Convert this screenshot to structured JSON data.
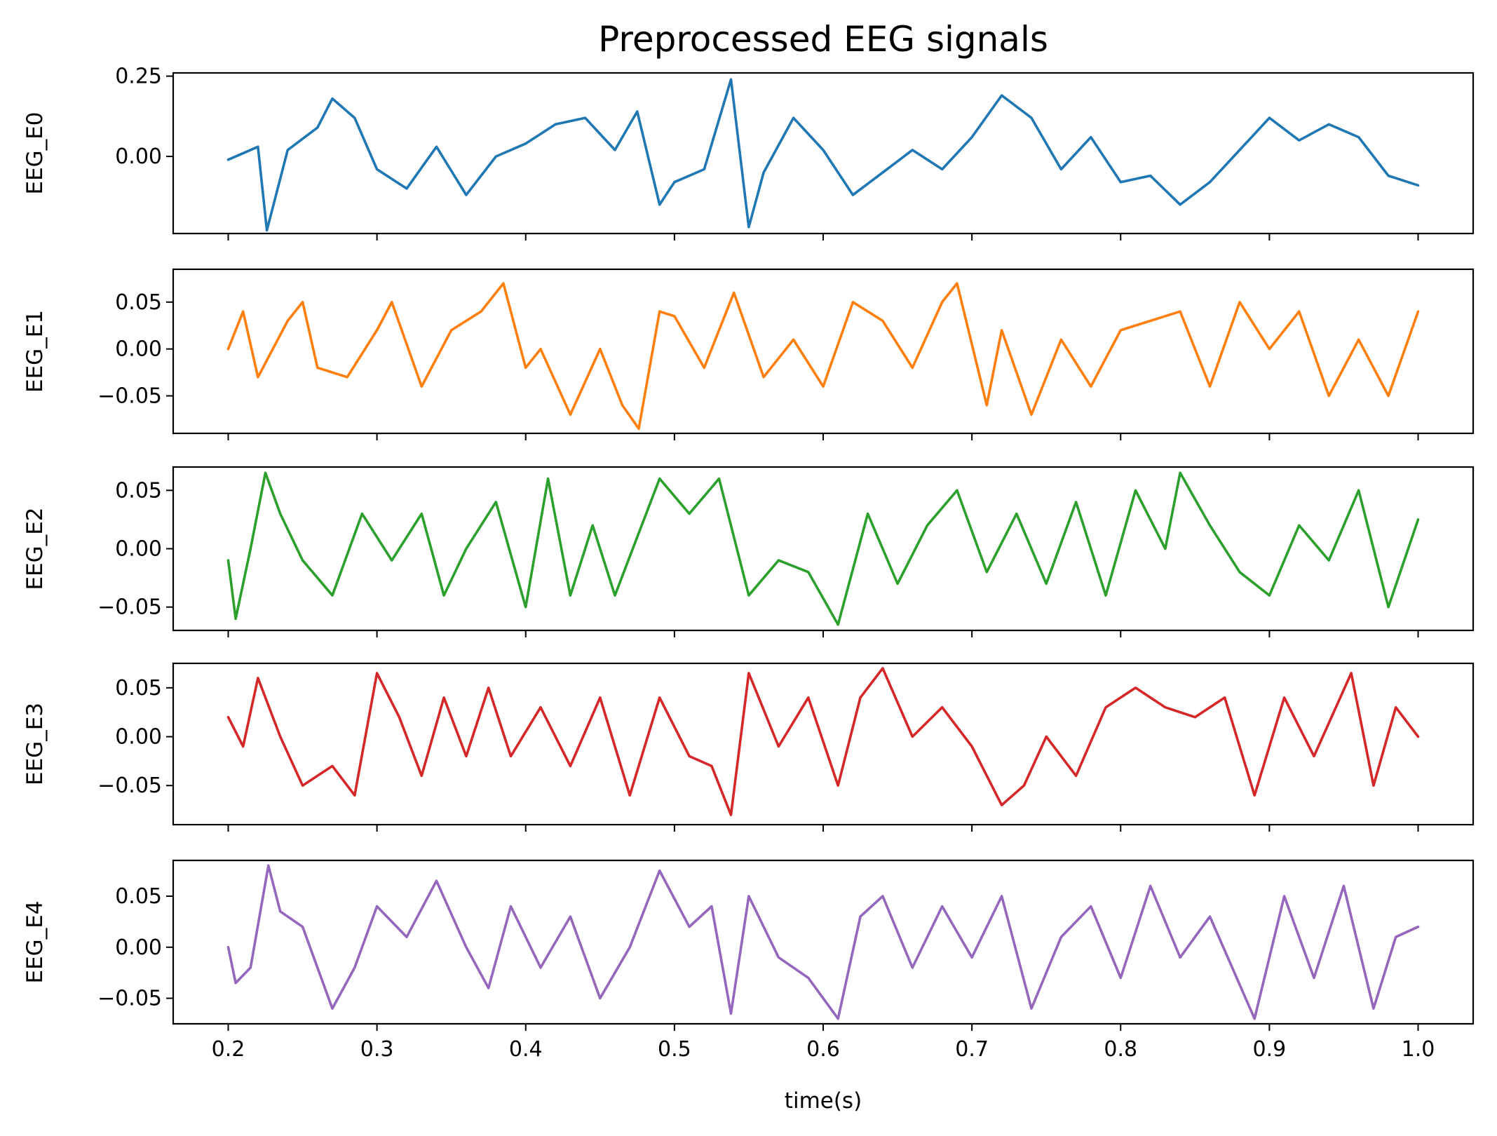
{
  "chart_data": {
    "type": "line",
    "title": "Preprocessed EEG signals",
    "xlabel": "time(s)",
    "xlim": [
      0.163,
      1.037
    ],
    "xticks": [
      0.2,
      0.3,
      0.4,
      0.5,
      0.6,
      0.7,
      0.8,
      0.9,
      1.0
    ],
    "xtick_labels": [
      "0.2",
      "0.3",
      "0.4",
      "0.5",
      "0.6",
      "0.7",
      "0.8",
      "0.9",
      "1.0"
    ],
    "grid": false,
    "legend": "none",
    "panels": [
      {
        "ylabel": "EEG_E0",
        "color": "#1f77b4",
        "ylim": [
          -0.24,
          0.26
        ],
        "yticks": [
          0.25,
          0.0
        ],
        "ytick_labels": [
          "0.25",
          "0.00"
        ],
        "x": [
          0.2,
          0.22,
          0.226,
          0.24,
          0.26,
          0.27,
          0.285,
          0.3,
          0.32,
          0.34,
          0.36,
          0.38,
          0.4,
          0.42,
          0.44,
          0.46,
          0.475,
          0.49,
          0.5,
          0.52,
          0.538,
          0.55,
          0.56,
          0.58,
          0.6,
          0.62,
          0.64,
          0.66,
          0.68,
          0.7,
          0.72,
          0.74,
          0.76,
          0.78,
          0.8,
          0.82,
          0.84,
          0.86,
          0.88,
          0.9,
          0.92,
          0.94,
          0.96,
          0.98,
          1.0
        ],
        "values": [
          -0.01,
          0.03,
          -0.23,
          0.02,
          0.09,
          0.18,
          0.12,
          -0.04,
          -0.1,
          0.03,
          -0.12,
          0.0,
          0.04,
          0.1,
          0.12,
          0.02,
          0.14,
          -0.15,
          -0.08,
          -0.04,
          0.24,
          -0.22,
          -0.05,
          0.12,
          0.02,
          -0.12,
          -0.05,
          0.02,
          -0.04,
          0.06,
          0.19,
          0.12,
          -0.04,
          0.06,
          -0.08,
          -0.06,
          -0.15,
          -0.08,
          0.02,
          0.12,
          0.05,
          0.1,
          0.06,
          -0.06,
          -0.09
        ]
      },
      {
        "ylabel": "EEG_E1",
        "color": "#ff7f0e",
        "ylim": [
          -0.09,
          0.085
        ],
        "yticks": [
          0.05,
          0.0,
          -0.05
        ],
        "ytick_labels": [
          "0.05",
          "0.00",
          "−0.05"
        ],
        "x": [
          0.2,
          0.21,
          0.22,
          0.24,
          0.25,
          0.26,
          0.28,
          0.3,
          0.31,
          0.33,
          0.35,
          0.37,
          0.385,
          0.4,
          0.41,
          0.43,
          0.45,
          0.465,
          0.476,
          0.49,
          0.5,
          0.52,
          0.54,
          0.56,
          0.58,
          0.6,
          0.62,
          0.64,
          0.66,
          0.68,
          0.69,
          0.71,
          0.72,
          0.74,
          0.76,
          0.78,
          0.8,
          0.82,
          0.84,
          0.86,
          0.88,
          0.9,
          0.92,
          0.94,
          0.96,
          0.98,
          1.0
        ],
        "values": [
          0.0,
          0.04,
          -0.03,
          0.03,
          0.05,
          -0.02,
          -0.03,
          0.02,
          0.05,
          -0.04,
          0.02,
          0.04,
          0.07,
          -0.02,
          0.0,
          -0.07,
          0.0,
          -0.06,
          -0.085,
          0.04,
          0.035,
          -0.02,
          0.06,
          -0.03,
          0.01,
          -0.04,
          0.05,
          0.03,
          -0.02,
          0.05,
          0.07,
          -0.06,
          0.02,
          -0.07,
          0.01,
          -0.04,
          0.02,
          0.03,
          0.04,
          -0.04,
          0.05,
          0.0,
          0.04,
          -0.05,
          0.01,
          -0.05,
          0.04
        ]
      },
      {
        "ylabel": "EEG_E2",
        "color": "#2ca02c",
        "ylim": [
          -0.07,
          0.07
        ],
        "yticks": [
          0.05,
          0.0,
          -0.05
        ],
        "ytick_labels": [
          "0.05",
          "0.00",
          "−0.05"
        ],
        "x": [
          0.2,
          0.205,
          0.215,
          0.225,
          0.235,
          0.25,
          0.27,
          0.29,
          0.31,
          0.33,
          0.345,
          0.36,
          0.38,
          0.4,
          0.415,
          0.43,
          0.445,
          0.46,
          0.475,
          0.49,
          0.51,
          0.53,
          0.55,
          0.57,
          0.59,
          0.61,
          0.63,
          0.65,
          0.67,
          0.69,
          0.71,
          0.73,
          0.75,
          0.77,
          0.79,
          0.81,
          0.83,
          0.84,
          0.86,
          0.88,
          0.9,
          0.92,
          0.94,
          0.96,
          0.98,
          1.0
        ],
        "values": [
          -0.01,
          -0.06,
          0.0,
          0.065,
          0.03,
          -0.01,
          -0.04,
          0.03,
          -0.01,
          0.03,
          -0.04,
          0.0,
          0.04,
          -0.05,
          0.06,
          -0.04,
          0.02,
          -0.04,
          0.01,
          0.06,
          0.03,
          0.06,
          -0.04,
          -0.01,
          -0.02,
          -0.065,
          0.03,
          -0.03,
          0.02,
          0.05,
          -0.02,
          0.03,
          -0.03,
          0.04,
          -0.04,
          0.05,
          0.0,
          0.065,
          0.02,
          -0.02,
          -0.04,
          0.02,
          -0.01,
          0.05,
          -0.05,
          0.025
        ]
      },
      {
        "ylabel": "EEG_E3",
        "color": "#d62728",
        "ylim": [
          -0.09,
          0.075
        ],
        "yticks": [
          0.05,
          0.0,
          -0.05
        ],
        "ytick_labels": [
          "0.05",
          "0.00",
          "−0.05"
        ],
        "x": [
          0.2,
          0.21,
          0.22,
          0.235,
          0.25,
          0.27,
          0.285,
          0.3,
          0.315,
          0.33,
          0.345,
          0.36,
          0.375,
          0.39,
          0.41,
          0.43,
          0.45,
          0.47,
          0.49,
          0.51,
          0.525,
          0.538,
          0.55,
          0.57,
          0.59,
          0.61,
          0.625,
          0.64,
          0.66,
          0.68,
          0.7,
          0.72,
          0.735,
          0.75,
          0.77,
          0.79,
          0.81,
          0.83,
          0.85,
          0.87,
          0.89,
          0.91,
          0.93,
          0.955,
          0.97,
          0.985,
          1.0
        ],
        "values": [
          0.02,
          -0.01,
          0.06,
          0.0,
          -0.05,
          -0.03,
          -0.06,
          0.065,
          0.02,
          -0.04,
          0.04,
          -0.02,
          0.05,
          -0.02,
          0.03,
          -0.03,
          0.04,
          -0.06,
          0.04,
          -0.02,
          -0.03,
          -0.08,
          0.065,
          -0.01,
          0.04,
          -0.05,
          0.04,
          0.07,
          0.0,
          0.03,
          -0.01,
          -0.07,
          -0.05,
          0.0,
          -0.04,
          0.03,
          0.05,
          0.03,
          0.02,
          0.04,
          -0.06,
          0.04,
          -0.02,
          0.065,
          -0.05,
          0.03,
          0.0
        ]
      },
      {
        "ylabel": "EEG_E4",
        "color": "#9467bd",
        "ylim": [
          -0.075,
          0.085
        ],
        "yticks": [
          0.05,
          0.0,
          -0.05
        ],
        "ytick_labels": [
          "0.05",
          "0.00",
          "−0.05"
        ],
        "x": [
          0.2,
          0.205,
          0.215,
          0.227,
          0.235,
          0.25,
          0.27,
          0.285,
          0.3,
          0.32,
          0.34,
          0.36,
          0.375,
          0.39,
          0.41,
          0.43,
          0.45,
          0.47,
          0.49,
          0.51,
          0.525,
          0.538,
          0.55,
          0.57,
          0.59,
          0.61,
          0.625,
          0.64,
          0.66,
          0.68,
          0.7,
          0.72,
          0.74,
          0.76,
          0.78,
          0.8,
          0.82,
          0.84,
          0.86,
          0.875,
          0.89,
          0.91,
          0.93,
          0.95,
          0.97,
          0.985,
          1.0
        ],
        "values": [
          0.0,
          -0.035,
          -0.02,
          0.08,
          0.035,
          0.02,
          -0.06,
          -0.02,
          0.04,
          0.01,
          0.065,
          0.0,
          -0.04,
          0.04,
          -0.02,
          0.03,
          -0.05,
          0.0,
          0.075,
          0.02,
          0.04,
          -0.065,
          0.05,
          -0.01,
          -0.03,
          -0.07,
          0.03,
          0.05,
          -0.02,
          0.04,
          -0.01,
          0.05,
          -0.06,
          0.01,
          0.04,
          -0.03,
          0.06,
          -0.01,
          0.03,
          -0.02,
          -0.07,
          0.05,
          -0.03,
          0.06,
          -0.06,
          0.01,
          0.02
        ]
      }
    ]
  }
}
